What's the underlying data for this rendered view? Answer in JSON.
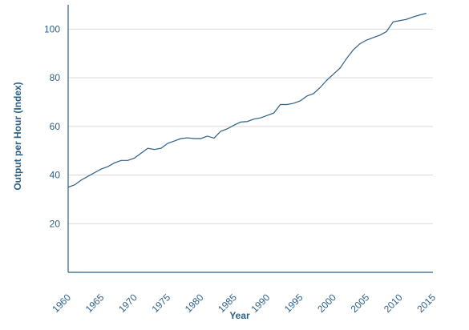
{
  "chart_data": {
    "type": "line",
    "title": "",
    "xlabel": "Year",
    "ylabel": "Output per Hour (Index)",
    "xlim": [
      1960,
      2015
    ],
    "ylim": [
      0,
      110
    ],
    "x_ticks": [
      "1960",
      "1965",
      "1970",
      "1975",
      "1980",
      "1985",
      "1990",
      "1995",
      "2000",
      "2005",
      "2010",
      "2015"
    ],
    "y_ticks": [
      "20",
      "40",
      "60",
      "80",
      "100"
    ],
    "grid": "horizontal",
    "legend": "none",
    "colors": {
      "line": "#2b5f86",
      "text": "#2b5f86",
      "grid": "#d9d9d9"
    },
    "series": [
      {
        "x": [
          1960,
          1961,
          1962,
          1963,
          1964,
          1965,
          1966,
          1967,
          1968,
          1969,
          1970,
          1971,
          1972,
          1973,
          1974,
          1975,
          1976,
          1977,
          1978,
          1979,
          1980,
          1981,
          1982,
          1983,
          1984,
          1985,
          1986,
          1987,
          1988,
          1989,
          1990,
          1991,
          1992,
          1993,
          1994,
          1995,
          1996,
          1997,
          1998,
          1999,
          2000,
          2001,
          2002,
          2003,
          2004,
          2005,
          2006,
          2007,
          2008,
          2009,
          2010,
          2011,
          2012,
          2013,
          2014
        ],
        "values": [
          35,
          36,
          38,
          39.5,
          41,
          42.5,
          43.5,
          45,
          46,
          46,
          47,
          49,
          51,
          50.5,
          51,
          53,
          54,
          55,
          55.3,
          55,
          55,
          56,
          55.2,
          58,
          59,
          60.5,
          61.8,
          62,
          63,
          63.5,
          64.5,
          65.5,
          69,
          69,
          69.5,
          70.5,
          72.5,
          73.5,
          76,
          79,
          81.5,
          84,
          88,
          91.5,
          94,
          95.5,
          96.5,
          97.5,
          99,
          103,
          103.5,
          104,
          105,
          105.8,
          106.5
        ]
      }
    ]
  }
}
